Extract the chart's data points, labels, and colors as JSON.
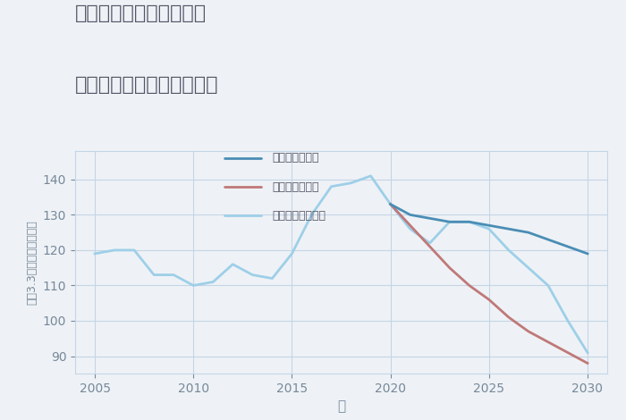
{
  "title_line1": "愛知県稲沢市下津穂所の",
  "title_line2": "中古マンションの価格推移",
  "xlabel": "年",
  "ylabel": "坪（3.3㎡）単価（万円）",
  "background_color": "#eef2f6",
  "plot_background_color": "#eef2f6",
  "grid_color": "#c5d5e5",
  "xlim": [
    2004,
    2031
  ],
  "ylim": [
    85,
    148
  ],
  "xticks": [
    2005,
    2010,
    2015,
    2020,
    2025,
    2030
  ],
  "yticks": [
    90,
    100,
    110,
    120,
    130,
    140
  ],
  "normal_years": [
    2005,
    2006,
    2007,
    2008,
    2009,
    2010,
    2011,
    2012,
    2013,
    2014,
    2015,
    2016,
    2017,
    2018,
    2019,
    2020,
    2021,
    2022,
    2023,
    2024,
    2025,
    2026,
    2027,
    2028,
    2029,
    2030
  ],
  "normal_values": [
    119,
    120,
    120,
    113,
    113,
    110,
    111,
    116,
    113,
    112,
    119,
    130,
    138,
    139,
    141,
    133,
    126,
    122,
    128,
    128,
    126,
    120,
    115,
    110,
    100,
    91
  ],
  "normal_color": "#9ecfe8",
  "good_years": [
    2020,
    2021,
    2022,
    2023,
    2024,
    2025,
    2026,
    2027,
    2028,
    2029,
    2030
  ],
  "good_values": [
    133,
    130,
    129,
    128,
    128,
    127,
    126,
    125,
    123,
    121,
    119
  ],
  "good_color": "#4a8db5",
  "bad_years": [
    2020,
    2021,
    2022,
    2023,
    2024,
    2025,
    2026,
    2027,
    2028,
    2029,
    2030
  ],
  "bad_values": [
    133,
    127,
    121,
    115,
    110,
    106,
    101,
    97,
    94,
    91,
    88
  ],
  "bad_color": "#c07878",
  "legend_labels": [
    "グッドシナリオ",
    "バッドシナリオ",
    "ノーマルシナリオ"
  ],
  "legend_colors": [
    "#4a8db5",
    "#c07878",
    "#9ecfe8"
  ],
  "title_color": "#555566",
  "axis_color": "#778899",
  "tick_color": "#778899",
  "tick_fontsize": 10,
  "xlabel_fontsize": 11,
  "ylabel_fontsize": 9
}
